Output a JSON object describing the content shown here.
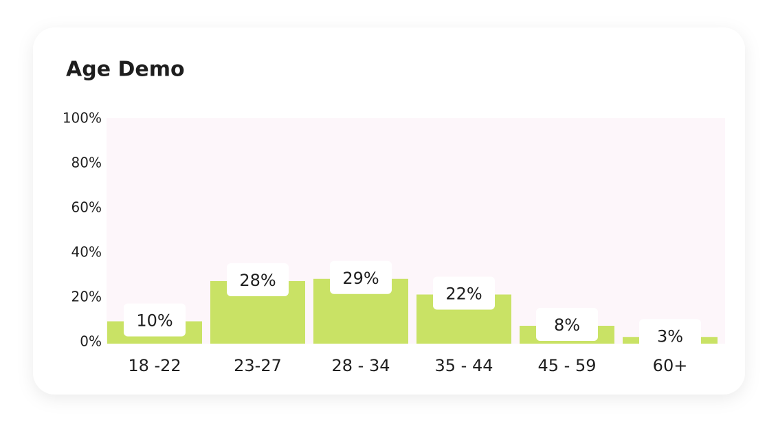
{
  "chart_data": {
    "type": "bar",
    "title": "Age Demo",
    "categories": [
      "18 -22",
      "23-27",
      "28 - 34",
      "35 - 44",
      "45 - 59",
      "60+"
    ],
    "values": [
      10,
      28,
      29,
      22,
      8,
      3
    ],
    "value_labels": [
      "10%",
      "28%",
      "29%",
      "22%",
      "8%",
      "3%"
    ],
    "color": "#c9e265",
    "ylim": [
      0,
      100
    ],
    "yticks": [
      {
        "value": 0,
        "label": "0%"
      },
      {
        "value": 20,
        "label": "20%"
      },
      {
        "value": 40,
        "label": "40%"
      },
      {
        "value": 60,
        "label": "60%"
      },
      {
        "value": 80,
        "label": "80%"
      },
      {
        "value": 100,
        "label": "100%"
      }
    ]
  }
}
